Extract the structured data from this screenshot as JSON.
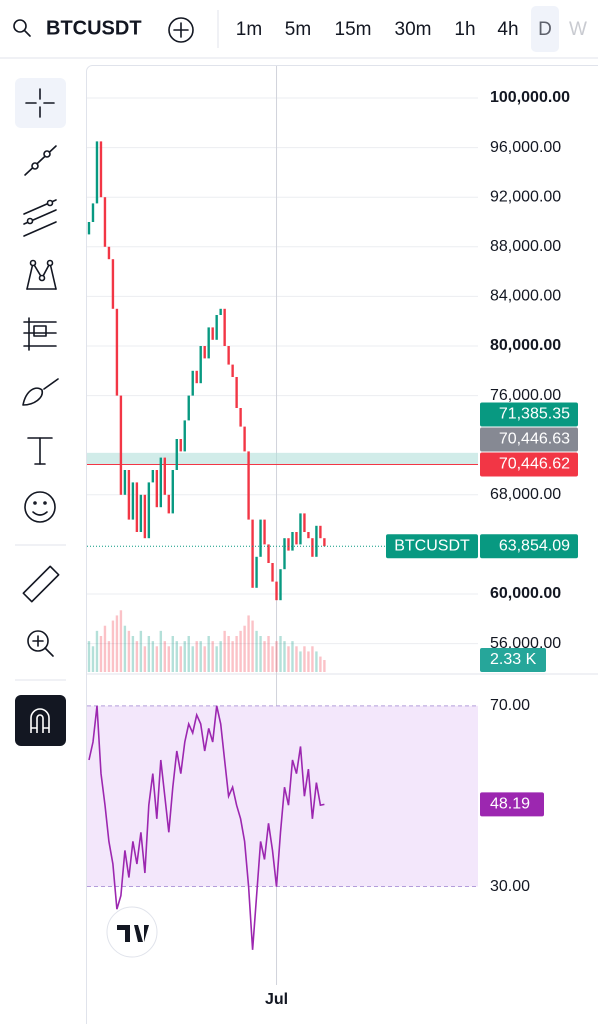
{
  "header": {
    "symbol": "BTCUSDT",
    "intervals": [
      "1m",
      "5m",
      "15m",
      "30m",
      "1h",
      "4h",
      "D",
      "W"
    ],
    "selected_index": 6
  },
  "chart_data": [
    {
      "type": "candlestick",
      "up_color": "#089981",
      "down_color": "#f23645",
      "open": [
        89000,
        90000,
        91500,
        96500,
        92000,
        88000,
        87000,
        83000,
        76000,
        68000,
        70000,
        66000,
        69000,
        65000,
        68000,
        64500,
        69000,
        70000,
        67000,
        71000,
        68000,
        66500,
        70000,
        72500,
        71500,
        74000,
        76000,
        78000,
        77000,
        80000,
        79000,
        81500,
        80500,
        82500,
        83000,
        80000,
        78500,
        77500,
        75000,
        73500,
        71500,
        66000,
        60500,
        63000,
        66000,
        64000,
        62500,
        61000,
        59500,
        62000,
        64500,
        63500,
        65000,
        64000,
        66500,
        65000,
        64500,
        63000,
        65500,
        64500
      ],
      "close": [
        90000,
        91500,
        96500,
        92000,
        88000,
        87000,
        83000,
        76000,
        68000,
        70000,
        66000,
        69000,
        65000,
        68000,
        64500,
        69000,
        70000,
        67000,
        71000,
        68000,
        66500,
        70000,
        72500,
        71500,
        74000,
        76000,
        78000,
        77000,
        80000,
        79000,
        81500,
        80500,
        82500,
        83000,
        80000,
        78500,
        77500,
        75000,
        73500,
        71500,
        66000,
        60500,
        63000,
        66000,
        64000,
        62500,
        61000,
        59500,
        62000,
        64500,
        63500,
        65000,
        64000,
        66500,
        65000,
        64500,
        63000,
        65500,
        64500,
        63854.09
      ],
      "ylim": [
        53710,
        102580
      ],
      "yticks": [
        {
          "value": 100000,
          "label": "100,000.00"
        },
        {
          "value": 96000,
          "label": "96,000.00"
        },
        {
          "value": 92000,
          "label": "92,000.00"
        },
        {
          "value": 88000,
          "label": "88,000.00"
        },
        {
          "value": 84000,
          "label": "84,000.00"
        },
        {
          "value": 80000,
          "label": "80,000.00"
        },
        {
          "value": 76000,
          "label": "76,000.00"
        },
        {
          "value": 68000,
          "label": "68,000.00"
        },
        {
          "value": 60000,
          "label": "60,000.00"
        },
        {
          "value": 56000,
          "label": "56,000.00"
        }
      ],
      "xlim": [
        0,
        98
      ],
      "xticks": [
        {
          "value": 47.5,
          "label": "Jul"
        }
      ],
      "price_labels": [
        {
          "value": 71385.35,
          "label": "71,385.35",
          "color": "#089981"
        },
        {
          "value": 70446.63,
          "label": "70,446.63",
          "color": "#868993"
        },
        {
          "value": 70446.62,
          "label": "70,446.62",
          "color": "#f23645"
        }
      ],
      "last": {
        "name": "BTCUSDT",
        "value": 63854.09,
        "label": "63,854.09",
        "color": "#089981"
      }
    },
    {
      "type": "bar",
      "values": [
        6,
        5,
        8,
        7,
        9,
        6,
        10,
        11,
        12,
        9,
        8,
        7,
        6,
        8,
        5,
        7,
        6,
        5,
        8,
        6,
        5,
        7,
        6,
        5,
        6,
        7,
        5,
        6,
        6,
        5,
        7,
        6,
        5,
        6,
        8,
        7,
        6,
        7,
        8,
        9,
        11,
        10,
        8,
        7,
        6,
        7,
        5,
        6,
        7,
        6,
        5,
        6,
        5,
        4,
        5,
        4,
        5,
        4,
        3,
        2.33
      ],
      "ylim": [
        0,
        14
      ],
      "last": {
        "value": 2.33,
        "label": "2.33 K",
        "color": "#26a69a"
      }
    },
    {
      "type": "line",
      "color": "#9c27b0",
      "values": [
        58,
        62,
        70,
        55,
        48,
        40,
        35,
        25,
        28,
        38,
        32,
        40,
        35,
        42,
        33,
        48,
        55,
        45,
        58,
        50,
        42,
        52,
        60,
        55,
        62,
        66,
        64,
        68,
        66,
        60,
        65,
        62,
        70,
        66,
        58,
        50,
        52,
        48,
        45,
        40,
        30,
        16,
        28,
        40,
        36,
        44,
        38,
        30,
        42,
        52,
        48,
        58,
        55,
        61,
        50,
        56,
        45,
        53,
        48,
        48.19
      ],
      "ylim": [
        6,
        76.6
      ],
      "yticks": [
        {
          "value": 70,
          "label": "70.00"
        },
        {
          "value": 30,
          "label": "30.00"
        }
      ],
      "last": {
        "value": 48.19,
        "label": "48.19",
        "color": "#9c27b0"
      }
    }
  ]
}
